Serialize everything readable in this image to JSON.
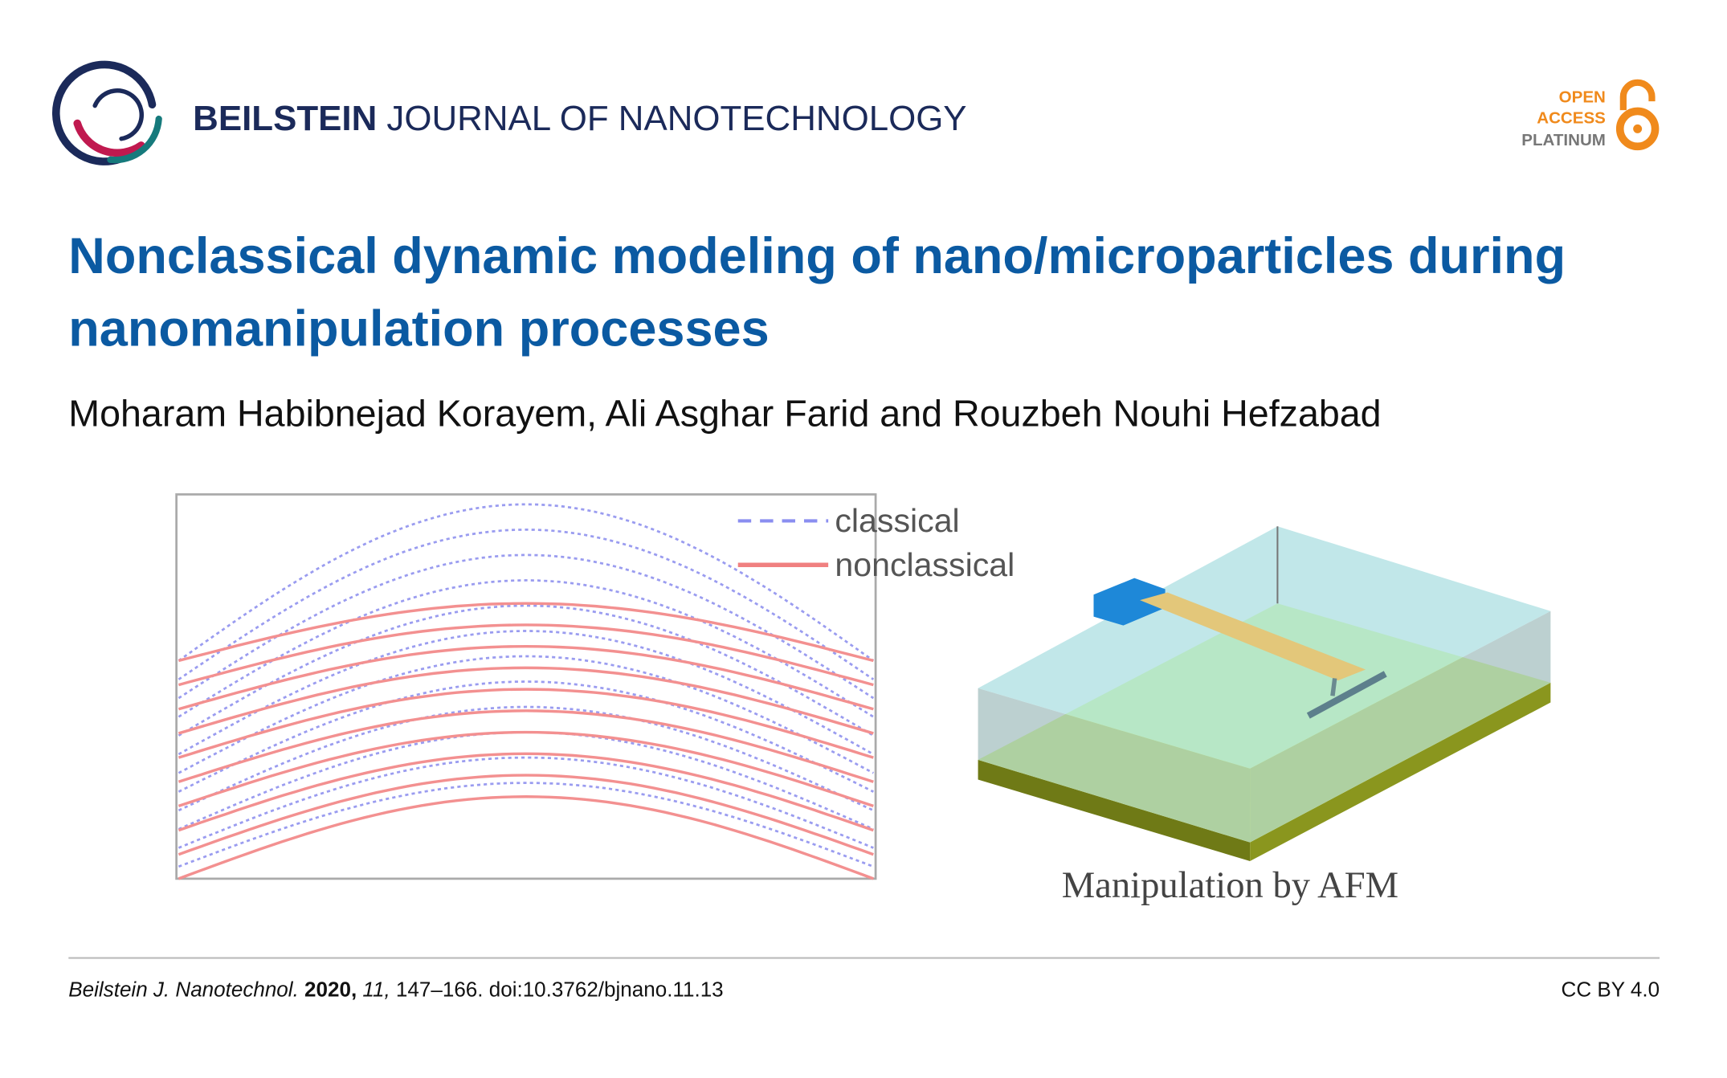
{
  "header": {
    "journal_bold": "BEILSTEIN",
    "journal_rest": "JOURNAL OF NANOTECHNOLOGY",
    "badge": [
      "OPEN",
      "ACCESS",
      "PLATINUM"
    ]
  },
  "title_lines": [
    "Nonclassical dynamic modeling of nano/microparticles during",
    "nanomanipulation processes"
  ],
  "authors": "Moharam Habibnejad Korayem, Ali Asghar Farid and Rouzbeh Nouhi Hefzabad",
  "figure": {
    "legend": [
      "classical",
      "nonclassical"
    ],
    "caption": "Manipulation by AFM"
  },
  "footer": {
    "journal": "Beilstein J. Nanotechnol.",
    "year": "2020,",
    "volume": "11,",
    "pages": "147–166. doi:10.3762/bjnano.11.13",
    "license": "CC BY 4.0"
  }
}
